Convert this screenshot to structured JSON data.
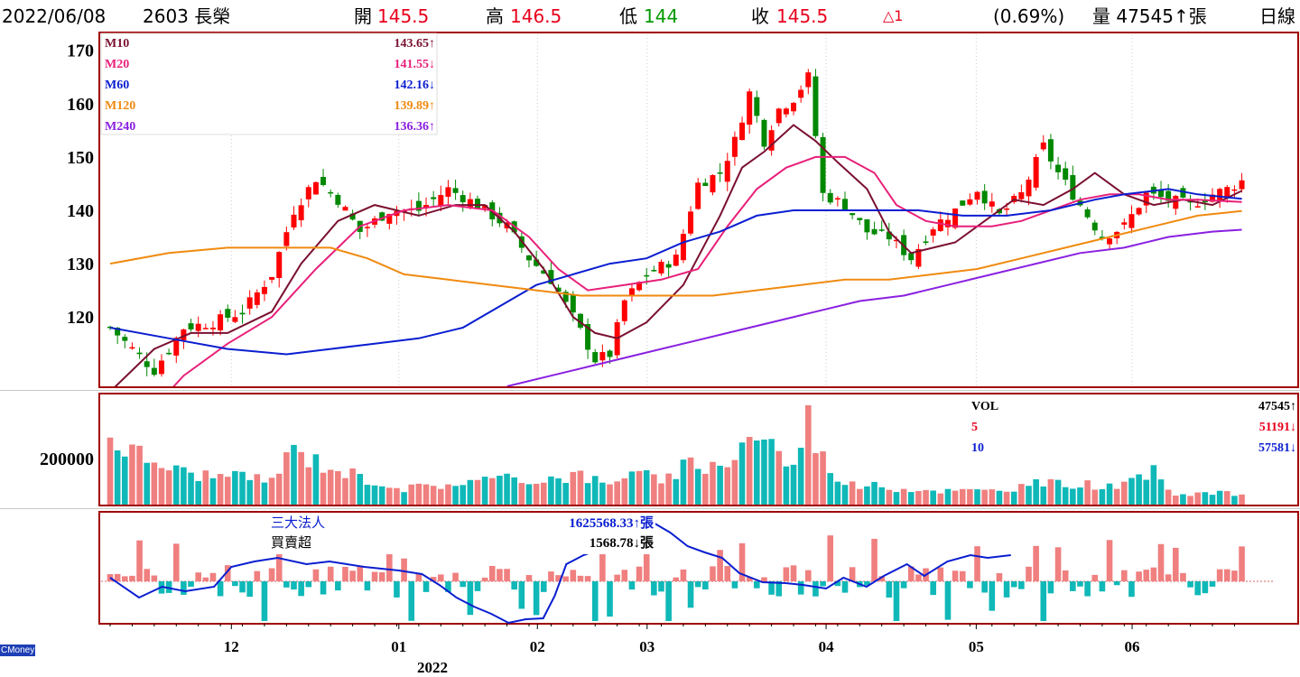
{
  "header": {
    "date": "2022/06/08",
    "stock": "2603 長榮",
    "open_label": "開",
    "open": "145.5",
    "high_label": "高",
    "high": "146.5",
    "low_label": "低",
    "low": "144",
    "close_label": "收",
    "close": "145.5",
    "change": "△1",
    "change_pct": "(0.69%)",
    "volume": "量 47545↑張",
    "period": "日線"
  },
  "logo": "CMoney",
  "chart_data": [
    {
      "type": "line",
      "panel": "price",
      "y_ticks": [
        "170",
        "160",
        "150",
        "140",
        "130",
        "120"
      ],
      "y_tick_values": [
        170,
        160,
        150,
        140,
        130,
        120
      ],
      "ylim": [
        107,
        173
      ],
      "legend": [
        {
          "name": "M10",
          "value": "143.65↑",
          "color": "#7a1030"
        },
        {
          "name": "M20",
          "value": "141.55↓",
          "color": "#e8207a"
        },
        {
          "name": "M60",
          "value": "142.16↓",
          "color": "#0a1ed0"
        },
        {
          "name": "M120",
          "value": "139.89↑",
          "color": "#f08a10"
        },
        {
          "name": "M240",
          "value": "136.36↑",
          "color": "#8a20e0"
        }
      ],
      "candle_anchors": [
        {
          "x": 0,
          "close": 118
        },
        {
          "x": 3,
          "close": 114
        },
        {
          "x": 6,
          "close": 110
        },
        {
          "x": 10,
          "close": 118
        },
        {
          "x": 14,
          "close": 119
        },
        {
          "x": 18,
          "close": 121
        },
        {
          "x": 22,
          "close": 128
        },
        {
          "x": 25,
          "close": 140
        },
        {
          "x": 28,
          "close": 146
        },
        {
          "x": 31,
          "close": 142
        },
        {
          "x": 34,
          "close": 136
        },
        {
          "x": 38,
          "close": 140
        },
        {
          "x": 42,
          "close": 140
        },
        {
          "x": 46,
          "close": 144
        },
        {
          "x": 50,
          "close": 141
        },
        {
          "x": 54,
          "close": 137
        },
        {
          "x": 57,
          "close": 131
        },
        {
          "x": 60,
          "close": 127
        },
        {
          "x": 63,
          "close": 120
        },
        {
          "x": 66,
          "close": 112
        },
        {
          "x": 68,
          "close": 113
        },
        {
          "x": 70,
          "close": 123
        },
        {
          "x": 73,
          "close": 128
        },
        {
          "x": 77,
          "close": 131
        },
        {
          "x": 80,
          "close": 145
        },
        {
          "x": 83,
          "close": 147
        },
        {
          "x": 85,
          "close": 153
        },
        {
          "x": 87,
          "close": 162
        },
        {
          "x": 89,
          "close": 153
        },
        {
          "x": 91,
          "close": 159
        },
        {
          "x": 93,
          "close": 161
        },
        {
          "x": 95,
          "close": 165
        },
        {
          "x": 97,
          "close": 143
        },
        {
          "x": 100,
          "close": 141
        },
        {
          "x": 103,
          "close": 136
        },
        {
          "x": 106,
          "close": 135
        },
        {
          "x": 109,
          "close": 131
        },
        {
          "x": 112,
          "close": 137
        },
        {
          "x": 115,
          "close": 140
        },
        {
          "x": 118,
          "close": 144
        },
        {
          "x": 121,
          "close": 139
        },
        {
          "x": 124,
          "close": 143
        },
        {
          "x": 127,
          "close": 152
        },
        {
          "x": 129,
          "close": 147
        },
        {
          "x": 132,
          "close": 141
        },
        {
          "x": 135,
          "close": 135
        },
        {
          "x": 138,
          "close": 137
        },
        {
          "x": 141,
          "close": 143
        },
        {
          "x": 144,
          "close": 142
        },
        {
          "x": 147,
          "close": 141
        },
        {
          "x": 150,
          "close": 143
        },
        {
          "x": 152,
          "close": 144
        },
        {
          "x": 154,
          "close": 145.5
        }
      ],
      "ma_series": [
        {
          "name": "M10",
          "color": "#7a1030",
          "points": [
            [
              0,
              106
            ],
            [
              6,
              114
            ],
            [
              11,
              117
            ],
            [
              16,
              117
            ],
            [
              22,
              121
            ],
            [
              26,
              130
            ],
            [
              31,
              138
            ],
            [
              36,
              141
            ],
            [
              42,
              139
            ],
            [
              47,
              141
            ],
            [
              51,
              141
            ],
            [
              55,
              136
            ],
            [
              59,
              129
            ],
            [
              63,
              120
            ],
            [
              66,
              117
            ],
            [
              69,
              116
            ],
            [
              73,
              119
            ],
            [
              78,
              126
            ],
            [
              83,
              139
            ],
            [
              86,
              148
            ],
            [
              89,
              151
            ],
            [
              93,
              156
            ],
            [
              96,
              153
            ],
            [
              99,
              149
            ],
            [
              103,
              144
            ],
            [
              106,
              136
            ],
            [
              109,
              132
            ],
            [
              112,
              133
            ],
            [
              115,
              134
            ],
            [
              119,
              138
            ],
            [
              123,
              142
            ],
            [
              127,
              141
            ],
            [
              131,
              144
            ],
            [
              134,
              147
            ],
            [
              138,
              143
            ],
            [
              142,
              141
            ],
            [
              146,
              142
            ],
            [
              150,
              141
            ],
            [
              154,
              143.65
            ]
          ]
        },
        {
          "name": "M20",
          "color": "#e8207a",
          "points": [
            [
              4,
              100
            ],
            [
              10,
              109
            ],
            [
              16,
              115
            ],
            [
              22,
              120
            ],
            [
              28,
              129
            ],
            [
              34,
              137
            ],
            [
              40,
              140
            ],
            [
              46,
              141
            ],
            [
              52,
              140
            ],
            [
              57,
              135
            ],
            [
              61,
              129
            ],
            [
              65,
              125
            ],
            [
              70,
              126
            ],
            [
              75,
              127
            ],
            [
              80,
              129
            ],
            [
              84,
              137
            ],
            [
              88,
              144
            ],
            [
              92,
              148
            ],
            [
              96,
              150
            ],
            [
              100,
              150
            ],
            [
              104,
              147
            ],
            [
              107,
              141
            ],
            [
              111,
              138
            ],
            [
              115,
              137
            ],
            [
              120,
              137
            ],
            [
              124,
              138
            ],
            [
              128,
              140
            ],
            [
              132,
              142
            ],
            [
              136,
              143
            ],
            [
              140,
              143
            ],
            [
              144,
              142
            ],
            [
              148,
              142
            ],
            [
              154,
              141.55
            ]
          ]
        },
        {
          "name": "M60",
          "color": "#0a1ed0",
          "points": [
            [
              0,
              118
            ],
            [
              8,
              116
            ],
            [
              16,
              114
            ],
            [
              24,
              113
            ],
            [
              30,
              114
            ],
            [
              36,
              115
            ],
            [
              42,
              116
            ],
            [
              48,
              118
            ],
            [
              53,
              122
            ],
            [
              58,
              126
            ],
            [
              63,
              128
            ],
            [
              68,
              130
            ],
            [
              73,
              131
            ],
            [
              78,
              134
            ],
            [
              83,
              136
            ],
            [
              88,
              139
            ],
            [
              93,
              140
            ],
            [
              98,
              140
            ],
            [
              104,
              140
            ],
            [
              110,
              140
            ],
            [
              116,
              139
            ],
            [
              122,
              139
            ],
            [
              128,
              140
            ],
            [
              134,
              142
            ],
            [
              138,
              143
            ],
            [
              144,
              144
            ],
            [
              148,
              143
            ],
            [
              154,
              142.16
            ]
          ]
        },
        {
          "name": "M120",
          "color": "#f08a10",
          "points": [
            [
              0,
              130
            ],
            [
              8,
              132
            ],
            [
              16,
              133
            ],
            [
              24,
              133
            ],
            [
              30,
              133
            ],
            [
              35,
              131
            ],
            [
              40,
              128
            ],
            [
              46,
              127
            ],
            [
              52,
              126
            ],
            [
              58,
              125
            ],
            [
              64,
              124
            ],
            [
              70,
              124
            ],
            [
              76,
              124
            ],
            [
              82,
              124
            ],
            [
              88,
              125
            ],
            [
              94,
              126
            ],
            [
              100,
              127
            ],
            [
              106,
              127
            ],
            [
              112,
              128
            ],
            [
              118,
              129
            ],
            [
              124,
              131
            ],
            [
              130,
              133
            ],
            [
              136,
              135
            ],
            [
              142,
              137
            ],
            [
              148,
              139
            ],
            [
              154,
              139.89
            ]
          ]
        },
        {
          "name": "M240",
          "color": "#8a20e0",
          "points": [
            [
              54,
              107
            ],
            [
              60,
              109
            ],
            [
              66,
              111
            ],
            [
              72,
              113
            ],
            [
              78,
              115
            ],
            [
              84,
              117
            ],
            [
              90,
              119
            ],
            [
              96,
              121
            ],
            [
              102,
              123
            ],
            [
              108,
              124
            ],
            [
              114,
              126
            ],
            [
              120,
              128
            ],
            [
              126,
              130
            ],
            [
              132,
              132
            ],
            [
              138,
              133
            ],
            [
              144,
              135
            ],
            [
              150,
              136
            ],
            [
              154,
              136.36
            ]
          ]
        }
      ]
    },
    {
      "type": "bar",
      "panel": "volume",
      "y_ticks": [
        "200000"
      ],
      "y_tick_values": [
        200000
      ],
      "ylim": [
        0,
        480000
      ],
      "legend": [
        {
          "name": "VOL",
          "value": "47545↑",
          "color": "#000000"
        },
        {
          "name": "5",
          "value": "51191↓",
          "color": "#e8001c"
        },
        {
          "name": "10",
          "value": "57581↓",
          "color": "#0a1ed0"
        }
      ],
      "volume_anchors": [
        {
          "x": 0,
          "v": 300000
        },
        {
          "x": 3,
          "v": 230000
        },
        {
          "x": 6,
          "v": 190000
        },
        {
          "x": 10,
          "v": 140000
        },
        {
          "x": 16,
          "v": 120000
        },
        {
          "x": 22,
          "v": 110000
        },
        {
          "x": 25,
          "v": 240000
        },
        {
          "x": 28,
          "v": 190000
        },
        {
          "x": 34,
          "v": 120000
        },
        {
          "x": 40,
          "v": 70000
        },
        {
          "x": 46,
          "v": 90000
        },
        {
          "x": 52,
          "v": 110000
        },
        {
          "x": 58,
          "v": 110000
        },
        {
          "x": 64,
          "v": 130000
        },
        {
          "x": 68,
          "v": 80000
        },
        {
          "x": 71,
          "v": 170000
        },
        {
          "x": 75,
          "v": 90000
        },
        {
          "x": 79,
          "v": 180000
        },
        {
          "x": 83,
          "v": 160000
        },
        {
          "x": 86,
          "v": 270000
        },
        {
          "x": 89,
          "v": 320000
        },
        {
          "x": 91,
          "v": 220000
        },
        {
          "x": 93,
          "v": 160000
        },
        {
          "x": 95,
          "v": 380000
        },
        {
          "x": 97,
          "v": 200000
        },
        {
          "x": 100,
          "v": 90000
        },
        {
          "x": 104,
          "v": 80000
        },
        {
          "x": 108,
          "v": 70000
        },
        {
          "x": 114,
          "v": 60000
        },
        {
          "x": 120,
          "v": 60000
        },
        {
          "x": 126,
          "v": 90000
        },
        {
          "x": 132,
          "v": 90000
        },
        {
          "x": 138,
          "v": 80000
        },
        {
          "x": 142,
          "v": 140000
        },
        {
          "x": 145,
          "v": 50000
        },
        {
          "x": 150,
          "v": 50000
        },
        {
          "x": 154,
          "v": 47545
        }
      ]
    },
    {
      "type": "bar",
      "panel": "institutional",
      "legend": [
        {
          "name": "三大法人",
          "value": "1625568.33↑張",
          "color": "#0a1ed0"
        },
        {
          "name": "買賣超",
          "value": "1568.78↓張",
          "color": "#000000"
        }
      ]
    }
  ],
  "x_axis": {
    "ticks": [
      {
        "label": "12",
        "x": 21
      },
      {
        "label": "01",
        "x": 50
      },
      {
        "label": "02",
        "x": 74
      },
      {
        "label": "03",
        "x": 93
      },
      {
        "label": "04",
        "x": 124
      },
      {
        "label": "05",
        "x": 150
      },
      {
        "label": "06",
        "x": 177
      }
    ],
    "year_label": "2022"
  },
  "colors": {
    "up": "#f07f7f",
    "down": "#10b8b8",
    "up_candle": "#ff0000",
    "down_candle": "#008800",
    "frame": "#a00000"
  }
}
